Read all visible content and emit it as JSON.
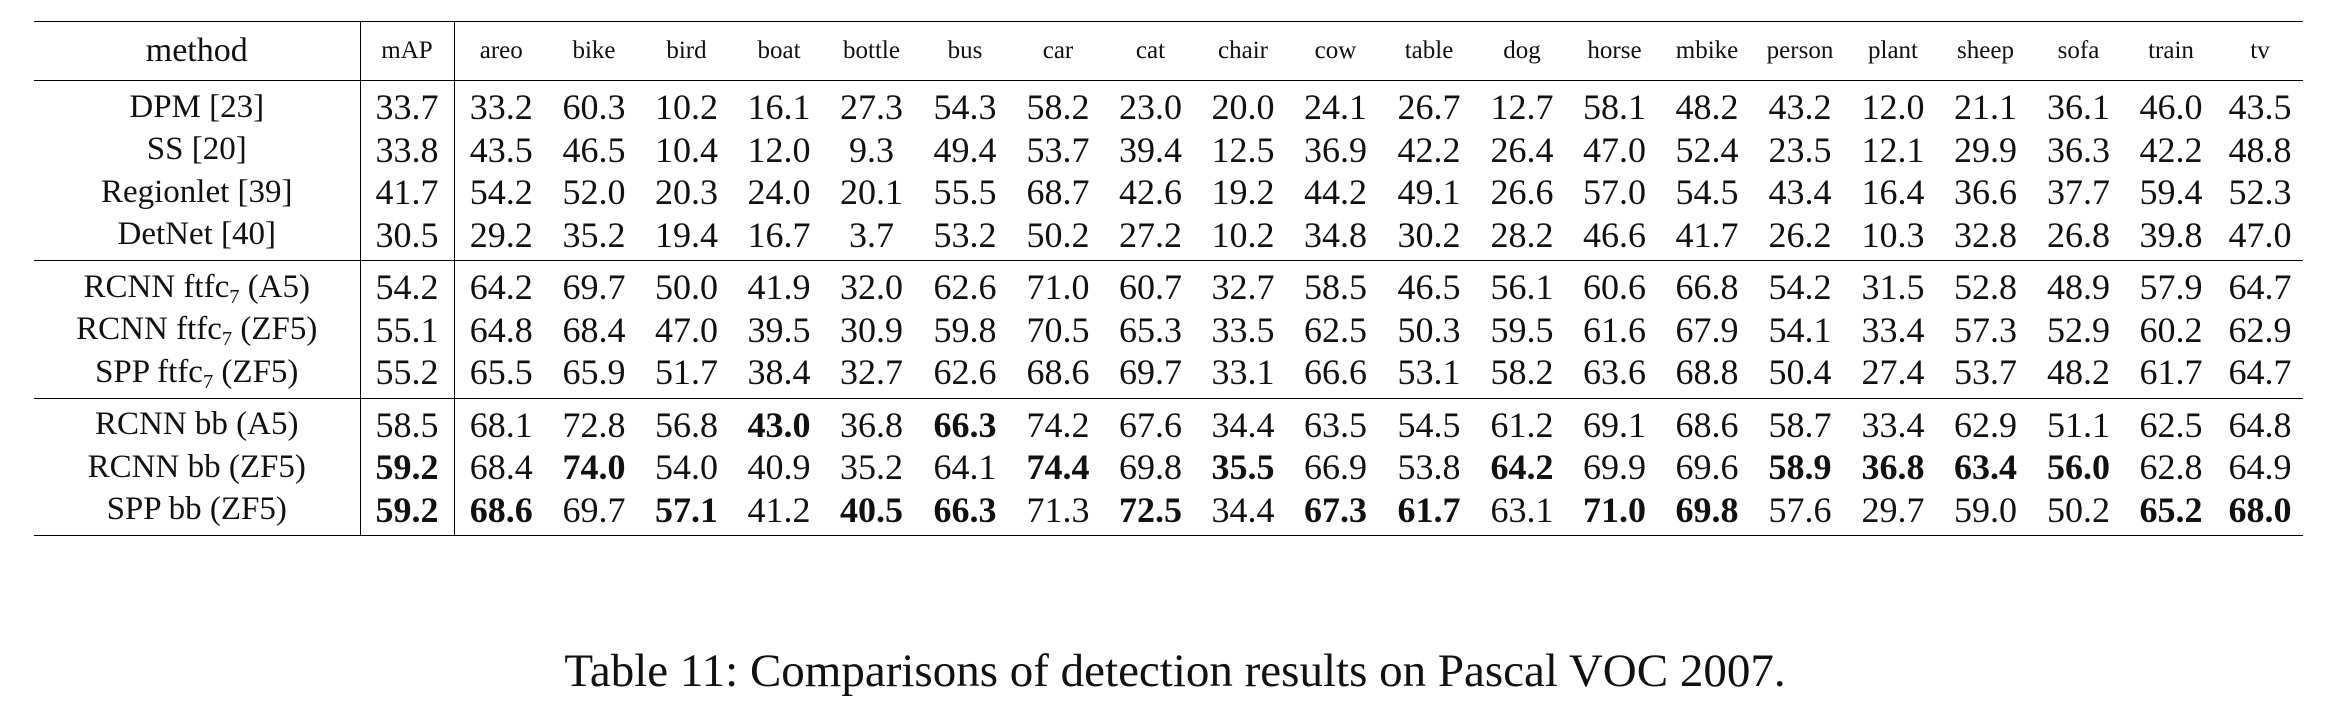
{
  "table": {
    "headers": [
      "method",
      "mAP",
      "areo",
      "bike",
      "bird",
      "boat",
      "bottle",
      "bus",
      "car",
      "cat",
      "chair",
      "cow",
      "table",
      "dog",
      "horse",
      "mbike",
      "person",
      "plant",
      "sheep",
      "sofa",
      "train",
      "tv"
    ],
    "groups": [
      [
        {
          "method": "DPM [23]",
          "values": [
            "33.7",
            "33.2",
            "60.3",
            "10.2",
            "16.1",
            "27.3",
            "54.3",
            "58.2",
            "23.0",
            "20.0",
            "24.1",
            "26.7",
            "12.7",
            "58.1",
            "48.2",
            "43.2",
            "12.0",
            "21.1",
            "36.1",
            "46.0",
            "43.5"
          ],
          "bold": []
        },
        {
          "method": "SS [20]",
          "values": [
            "33.8",
            "43.5",
            "46.5",
            "10.4",
            "12.0",
            "9.3",
            "49.4",
            "53.7",
            "39.4",
            "12.5",
            "36.9",
            "42.2",
            "26.4",
            "47.0",
            "52.4",
            "23.5",
            "12.1",
            "29.9",
            "36.3",
            "42.2",
            "48.8"
          ],
          "bold": []
        },
        {
          "method": "Regionlet [39]",
          "values": [
            "41.7",
            "54.2",
            "52.0",
            "20.3",
            "24.0",
            "20.1",
            "55.5",
            "68.7",
            "42.6",
            "19.2",
            "44.2",
            "49.1",
            "26.6",
            "57.0",
            "54.5",
            "43.4",
            "16.4",
            "36.6",
            "37.7",
            "59.4",
            "52.3"
          ],
          "bold": []
        },
        {
          "method": "DetNet [40]",
          "values": [
            "30.5",
            "29.2",
            "35.2",
            "19.4",
            "16.7",
            "3.7",
            "53.2",
            "50.2",
            "27.2",
            "10.2",
            "34.8",
            "30.2",
            "28.2",
            "46.6",
            "41.7",
            "26.2",
            "10.3",
            "32.8",
            "26.8",
            "39.8",
            "47.0"
          ],
          "bold": []
        }
      ],
      [
        {
          "method": "RCNN ftfc",
          "method_sub": "7",
          "method_suffix": " (A5)",
          "values": [
            "54.2",
            "64.2",
            "69.7",
            "50.0",
            "41.9",
            "32.0",
            "62.6",
            "71.0",
            "60.7",
            "32.7",
            "58.5",
            "46.5",
            "56.1",
            "60.6",
            "66.8",
            "54.2",
            "31.5",
            "52.8",
            "48.9",
            "57.9",
            "64.7"
          ],
          "bold": []
        },
        {
          "method": "RCNN ftfc",
          "method_sub": "7",
          "method_suffix": " (ZF5)",
          "values": [
            "55.1",
            "64.8",
            "68.4",
            "47.0",
            "39.5",
            "30.9",
            "59.8",
            "70.5",
            "65.3",
            "33.5",
            "62.5",
            "50.3",
            "59.5",
            "61.6",
            "67.9",
            "54.1",
            "33.4",
            "57.3",
            "52.9",
            "60.2",
            "62.9"
          ],
          "bold": []
        },
        {
          "method": "SPP ftfc",
          "method_sub": "7",
          "method_suffix": " (ZF5)",
          "values": [
            "55.2",
            "65.5",
            "65.9",
            "51.7",
            "38.4",
            "32.7",
            "62.6",
            "68.6",
            "69.7",
            "33.1",
            "66.6",
            "53.1",
            "58.2",
            "63.6",
            "68.8",
            "50.4",
            "27.4",
            "53.7",
            "48.2",
            "61.7",
            "64.7"
          ],
          "bold": []
        }
      ],
      [
        {
          "method": "RCNN bb (A5)",
          "values": [
            "58.5",
            "68.1",
            "72.8",
            "56.8",
            "43.0",
            "36.8",
            "66.3",
            "74.2",
            "67.6",
            "34.4",
            "63.5",
            "54.5",
            "61.2",
            "69.1",
            "68.6",
            "58.7",
            "33.4",
            "62.9",
            "51.1",
            "62.5",
            "64.8"
          ],
          "bold": [
            4,
            6
          ]
        },
        {
          "method": "RCNN bb (ZF5)",
          "values": [
            "59.2",
            "68.4",
            "74.0",
            "54.0",
            "40.9",
            "35.2",
            "64.1",
            "74.4",
            "69.8",
            "35.5",
            "66.9",
            "53.8",
            "64.2",
            "69.9",
            "69.6",
            "58.9",
            "36.8",
            "63.4",
            "56.0",
            "62.8",
            "64.9"
          ],
          "bold": [
            0,
            2,
            7,
            9,
            12,
            15,
            16,
            17,
            18
          ]
        },
        {
          "method": "SPP bb (ZF5)",
          "values": [
            "59.2",
            "68.6",
            "69.7",
            "57.1",
            "41.2",
            "40.5",
            "66.3",
            "71.3",
            "72.5",
            "34.4",
            "67.3",
            "61.7",
            "63.1",
            "71.0",
            "69.8",
            "57.6",
            "29.7",
            "59.0",
            "50.2",
            "65.2",
            "68.0"
          ],
          "bold": [
            0,
            1,
            3,
            5,
            6,
            8,
            10,
            11,
            13,
            14,
            19,
            20
          ]
        }
      ]
    ]
  },
  "caption": "Table 11: Comparisons of detection results on Pascal VOC 2007."
}
